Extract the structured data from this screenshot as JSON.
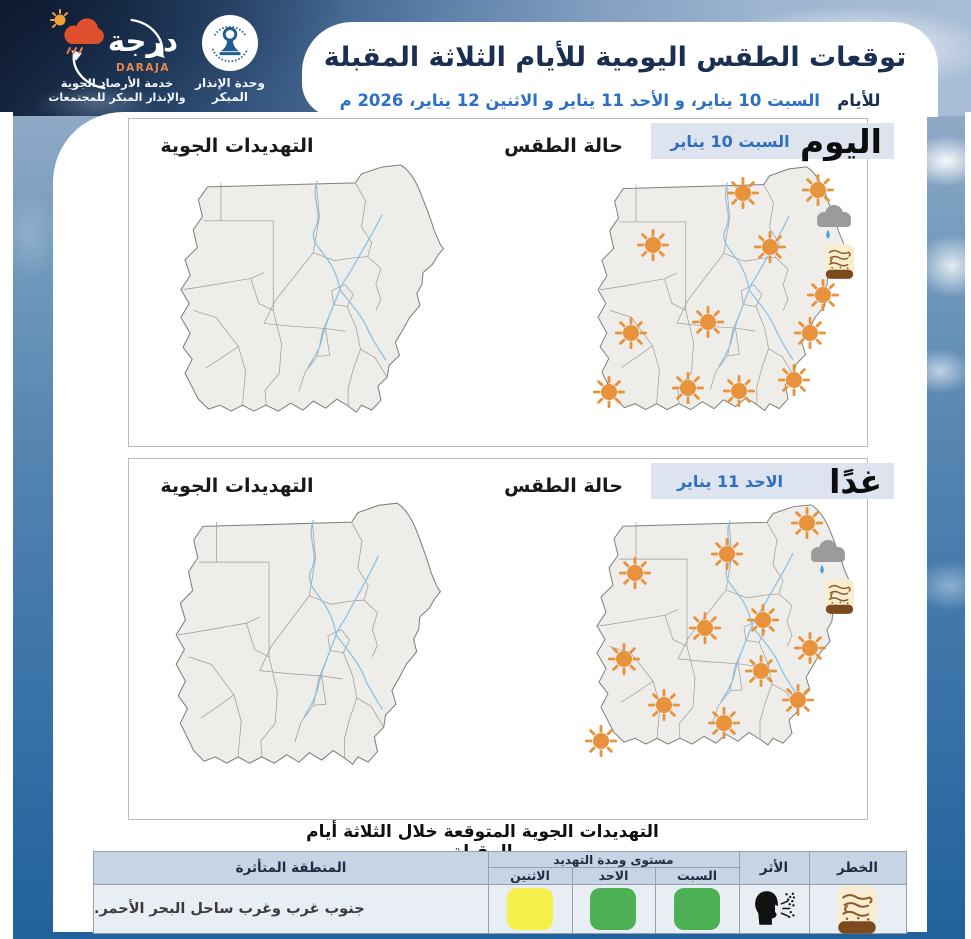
{
  "header": {
    "title": "توقعات الطقس اليومية للأيام الثلاثة المقبلة",
    "days_prefix": "للأيام",
    "days_line": "السبت 10 يناير، و الأحد 11 يناير  و الاثنين 12 يناير، 2026 م"
  },
  "logos": {
    "daraja_arabic": "درجة",
    "daraja_latin": "DARAJA",
    "daraja_tagline1": "خدمة الأرصاد الجوية",
    "daraja_tagline2": "والإنذار المبكر للمجتمعات",
    "unit_label": "وحدة الإنذار المبكر"
  },
  "rows": [
    {
      "day_label": "اليوم",
      "date_label": "السبت 10 يناير",
      "weather_label": "حالة الطقس",
      "threats_label": "التهديدات الجوية",
      "icons": {
        "suns": [
          [
            180,
            30
          ],
          [
            255,
            27
          ],
          [
            90,
            82
          ],
          [
            207,
            84
          ],
          [
            260,
            132
          ],
          [
            145,
            159
          ],
          [
            68,
            170
          ],
          [
            247,
            170
          ],
          [
            231,
            217
          ],
          [
            125,
            225
          ],
          [
            46,
            229
          ],
          [
            176,
            228
          ]
        ],
        "cloud_rain": [
          271,
          59
        ],
        "dust": [
          276,
          98
        ]
      }
    },
    {
      "day_label": "غدًا",
      "date_label": "الاحد 11 يناير",
      "weather_label": "حالة الطقس",
      "threats_label": "التهديدات الجوية",
      "icons": {
        "suns": [
          [
            246,
            22
          ],
          [
            166,
            53
          ],
          [
            74,
            72
          ],
          [
            202,
            119
          ],
          [
            144,
            127
          ],
          [
            249,
            147
          ],
          [
            63,
            158
          ],
          [
            200,
            170
          ],
          [
            237,
            199
          ],
          [
            103,
            204
          ],
          [
            163,
            222
          ],
          [
            40,
            240
          ]
        ],
        "cloud_rain": [
          267,
          56
        ],
        "dust": [
          278,
          95
        ]
      }
    }
  ],
  "table": {
    "title": "التهديدات الجوية المتوقعة خلال الثلاثة أيام المقبلة",
    "headers": {
      "region": "المنطقة المتأثرة",
      "level_group": "مستوى ومدة التهديد",
      "days": [
        "الاثنين",
        "الاحد",
        "السبت"
      ],
      "impact": "الأثر",
      "hazard": "الخطر"
    },
    "row": {
      "region": "جنوب غرب وغرب ساحل البحر الأحمر.",
      "day_levels": [
        {
          "day": "الاثنين",
          "color": "#f6f04c"
        },
        {
          "day": "الاحد",
          "color": "#4cb055"
        },
        {
          "day": "السبت",
          "color": "#4cb055"
        }
      ]
    }
  },
  "colors": {
    "accent_blue": "#2d6fc2",
    "title_navy": "#1b2f52",
    "sun_orange": "#e8923c",
    "tab_bg": "#dde4ef",
    "table_header_bg": "#c7d4e4"
  }
}
